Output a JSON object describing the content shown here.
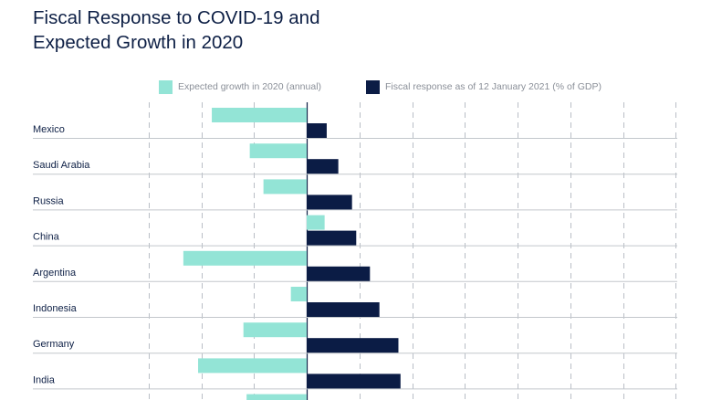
{
  "title": {
    "line1": "Fiscal Response to COVID-19 and",
    "line2": "Expected Growth in 2020"
  },
  "chart_data": {
    "type": "bar",
    "title": "Fiscal Response to COVID-19 and Expected Growth in 2020",
    "categories": [
      "Mexico",
      "Saudi Arabia",
      "Russia",
      "China",
      "Argentina",
      "Indonesia",
      "Germany",
      "India",
      ""
    ],
    "series": [
      {
        "name": "Expected growth in 2020 (annual)",
        "color": "#93e4d6",
        "values": [
          -9,
          -5.4,
          -4.1,
          1.7,
          -11.7,
          -1.5,
          -6,
          -10.3,
          -5.7
        ]
      },
      {
        "name": "Fiscal response as of 12 January 2021 (% of GDP)",
        "color": "#0b1c45",
        "values": [
          1.9,
          3,
          4.3,
          4.7,
          6,
          6.9,
          8.7,
          8.9,
          null
        ]
      }
    ],
    "xlim": [
      -15,
      15
    ],
    "grid": true,
    "legend_position": "top"
  }
}
